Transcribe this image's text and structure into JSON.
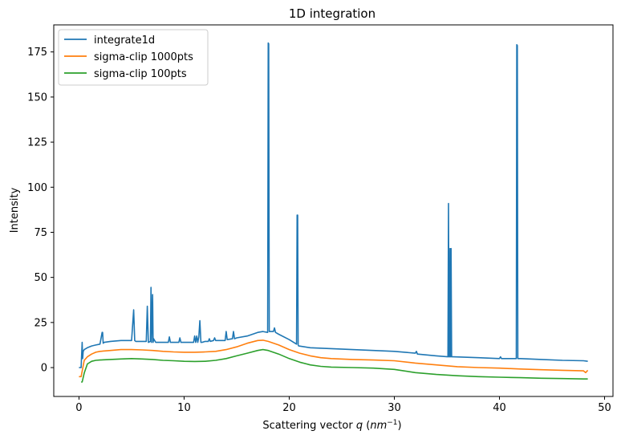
{
  "chart_data": {
    "type": "line",
    "title": "1D integration",
    "xlabel": "Scattering vector q (nm⁻¹)",
    "ylabel": "Intensity",
    "xlim": [
      -2.4,
      50.8
    ],
    "ylim": [
      -16,
      190
    ],
    "xticks": [
      0,
      10,
      20,
      30,
      40,
      50
    ],
    "yticks": [
      0,
      25,
      50,
      75,
      100,
      125,
      150,
      175
    ],
    "grid": false,
    "legend": "top-left",
    "series": [
      {
        "name": "integrate1d",
        "color": "#1f77b4",
        "x": [
          0,
          0.2,
          0.3,
          0.35,
          0.4,
          0.5,
          0.8,
          1.2,
          1.6,
          2.0,
          2.2,
          2.25,
          2.3,
          2.4,
          3,
          4,
          5,
          5.2,
          5.3,
          5.4,
          5.6,
          6,
          6.4,
          6.5,
          6.6,
          6.8,
          6.85,
          6.9,
          7.0,
          7.05,
          7.1,
          7.3,
          7.6,
          8,
          8.5,
          8.6,
          8.7,
          9,
          9.5,
          9.6,
          9.7,
          10,
          10.5,
          10.9,
          11.0,
          11.1,
          11.2,
          11.3,
          11.4,
          11.5,
          11.6,
          11.7,
          12,
          12.3,
          12.4,
          12.5,
          12.8,
          12.9,
          13,
          13.5,
          13.9,
          14.0,
          14.1,
          14.6,
          14.7,
          14.8,
          15,
          16,
          17,
          17.5,
          17.95,
          18.0,
          18.05,
          18.1,
          18.5,
          18.6,
          18.7,
          19,
          20,
          20.7,
          20.75,
          20.8,
          20.85,
          20.9,
          22,
          24,
          26,
          28,
          30,
          32,
          32.1,
          32.2,
          34,
          35.1,
          35.15,
          35.2,
          35.25,
          35.3,
          35.35,
          35.4,
          35.45,
          35.5,
          35.55,
          35.6,
          38,
          40,
          40.1,
          40.2,
          41.5,
          41.6,
          41.65,
          41.7,
          41.75,
          42,
          44,
          46,
          48,
          48.4
        ],
        "y": [
          0,
          0,
          14,
          5,
          9,
          10,
          11,
          12,
          12.5,
          13,
          19.5,
          19.5,
          13.5,
          14,
          14.5,
          15,
          15,
          32,
          15,
          14.5,
          14.5,
          14.5,
          14.5,
          34,
          14,
          14.5,
          44.5,
          14,
          40.5,
          14,
          16,
          14,
          14,
          14,
          14,
          17,
          14,
          14,
          14,
          16.5,
          14,
          14,
          14,
          14,
          17.5,
          14,
          17.5,
          14,
          17,
          26,
          14,
          14,
          14.5,
          14.5,
          16,
          14.5,
          15,
          16.5,
          15,
          15,
          15,
          20,
          15.5,
          16,
          20,
          16,
          16.5,
          17.5,
          19.5,
          20,
          19.5,
          180,
          179.5,
          20,
          20,
          22,
          19.5,
          18.5,
          15.5,
          13,
          84.5,
          84.5,
          12.5,
          12,
          11,
          10.5,
          10,
          9.5,
          9,
          8,
          9,
          7.5,
          6.5,
          6,
          91,
          6,
          6,
          66,
          6,
          66,
          6,
          6,
          6,
          6,
          5.5,
          5,
          6,
          5,
          5,
          5,
          179,
          178.5,
          5,
          5,
          4.5,
          4,
          3.8,
          3.5
        ]
      },
      {
        "name": "sigma-clip 1000pts",
        "color": "#ff7f0e",
        "x": [
          0,
          0.2,
          0.3,
          0.5,
          0.8,
          1.2,
          1.6,
          2,
          3,
          4,
          5,
          6,
          7,
          8,
          9,
          10,
          11,
          12,
          13,
          14,
          15,
          16,
          17,
          17.5,
          18,
          19,
          20,
          21,
          22,
          23,
          24,
          26,
          28,
          30,
          32,
          34,
          36,
          38,
          40,
          42,
          44,
          46,
          48,
          48.2,
          48.4
        ],
        "y": [
          -5,
          -5,
          -2,
          4,
          6,
          7.5,
          8.5,
          9,
          9.5,
          10,
          10,
          9.8,
          9.5,
          9,
          8.7,
          8.5,
          8.5,
          8.7,
          9,
          10,
          11.5,
          13.5,
          15,
          15.2,
          14.5,
          12.5,
          10,
          8,
          6.5,
          5.5,
          5,
          4.5,
          4.2,
          3.8,
          2.5,
          1.5,
          0.5,
          0,
          -0.3,
          -0.8,
          -1.2,
          -1.5,
          -1.8,
          -2.8,
          -1.5
        ]
      },
      {
        "name": "sigma-clip 100pts",
        "color": "#2ca02c",
        "x": [
          0.2,
          0.3,
          0.5,
          0.8,
          1.2,
          1.6,
          2,
          3,
          4,
          5,
          6,
          7,
          8,
          9,
          10,
          11,
          12,
          13,
          14,
          15,
          16,
          17,
          17.5,
          18,
          19,
          20,
          21,
          22,
          23,
          24,
          26,
          28,
          30,
          32,
          34,
          36,
          38,
          40,
          42,
          44,
          46,
          48,
          48.4
        ],
        "y": [
          -8,
          -8,
          -3,
          2,
          3.5,
          4,
          4.2,
          4.5,
          4.8,
          5,
          4.8,
          4.5,
          4,
          3.8,
          3.5,
          3.4,
          3.5,
          4,
          5,
          6.5,
          8,
          9.5,
          10,
          9.5,
          7.5,
          5,
          3,
          1.5,
          0.7,
          0.3,
          0,
          -0.3,
          -1,
          -2.8,
          -3.8,
          -4.5,
          -5,
          -5.3,
          -5.6,
          -5.9,
          -6.1,
          -6.3,
          -6.3
        ]
      }
    ]
  }
}
